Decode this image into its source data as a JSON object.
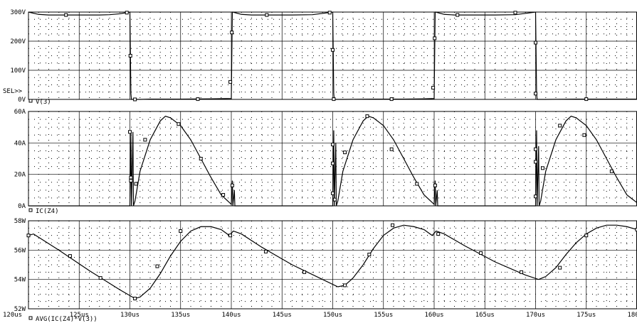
{
  "sel_label": "SEL>>",
  "chart_data": [
    {
      "type": "line",
      "title": "",
      "legend": "V(3)",
      "xlim": [
        120,
        180
      ],
      "ylim": [
        0,
        300
      ],
      "y_ticks": [
        {
          "value": 300,
          "label": "300V"
        },
        {
          "value": 200,
          "label": "200V"
        },
        {
          "value": 100,
          "label": "100V"
        },
        {
          "value": 0,
          "label": "0V"
        }
      ],
      "series": [
        {
          "x": [
            120,
            121,
            122,
            123,
            124,
            125,
            126,
            127,
            128,
            129,
            130,
            130.1,
            130.15,
            131,
            132,
            133,
            135,
            138,
            140,
            140.1,
            140.15,
            141,
            142,
            143,
            144,
            146,
            148,
            150,
            150.1,
            150.15,
            151,
            154,
            157,
            159,
            160,
            160.1,
            160.15,
            161,
            162,
            163,
            164,
            166,
            168,
            170,
            170.1,
            170.15,
            171,
            174,
            177,
            180
          ],
          "y": [
            300,
            292,
            290,
            290,
            290,
            290,
            290,
            290,
            291,
            294,
            300,
            20,
            0,
            0,
            1,
            1,
            1,
            2,
            3,
            300,
            300,
            292,
            290,
            290,
            290,
            290,
            291,
            300,
            20,
            0,
            0,
            1,
            1,
            2,
            3,
            300,
            300,
            292,
            290,
            290,
            290,
            290,
            291,
            300,
            20,
            0,
            0,
            1,
            1,
            1
          ],
          "markers": [
            [
              123.7,
              290
            ],
            [
              129.7,
              298
            ],
            [
              130.05,
              150
            ],
            [
              130.5,
              0
            ],
            [
              136.7,
              1
            ],
            [
              139.9,
              60
            ],
            [
              140.05,
              230
            ],
            [
              143.5,
              290
            ],
            [
              149.7,
              298
            ],
            [
              150.0,
              170
            ],
            [
              150.1,
              1
            ],
            [
              155.8,
              1
            ],
            [
              159.9,
              40
            ],
            [
              160.05,
              210
            ],
            [
              162.3,
              290
            ],
            [
              168.0,
              298
            ],
            [
              170.0,
              195
            ],
            [
              170.0,
              20
            ],
            [
              175.0,
              1
            ]
          ]
        }
      ]
    },
    {
      "type": "line",
      "title": "",
      "legend": "IC(Z4)",
      "xlim": [
        120,
        180
      ],
      "ylim": [
        0,
        60
      ],
      "y_ticks": [
        {
          "value": 60,
          "label": "60A"
        },
        {
          "value": 40,
          "label": "40A"
        },
        {
          "value": 20,
          "label": "20A"
        },
        {
          "value": 0,
          "label": "0A"
        }
      ],
      "series": [
        {
          "x": [
            120,
            130,
            130.1,
            130.15,
            130.3,
            130.35,
            130.5,
            131,
            132,
            133,
            133.5,
            134,
            135,
            136,
            137,
            138,
            139,
            140,
            140.1,
            140.15,
            140.3,
            140.35,
            141,
            150,
            150.1,
            150.15,
            150.3,
            150.35,
            150.5,
            151,
            152,
            153,
            153.5,
            154,
            155,
            156,
            157,
            158,
            159,
            160,
            160.1,
            160.15,
            160.3,
            160.35,
            161,
            170,
            170.1,
            170.15,
            170.3,
            170.35,
            170.5,
            171,
            172,
            173,
            173.5,
            174,
            175,
            176,
            177,
            178,
            179,
            180
          ],
          "y": [
            0,
            0,
            47,
            0,
            47,
            0,
            3,
            22,
            42,
            54,
            57,
            56,
            51,
            42,
            30,
            18,
            7,
            1,
            16,
            0,
            10,
            0,
            0,
            0,
            48,
            0,
            40,
            0,
            3,
            22,
            42,
            54,
            57,
            56,
            51,
            42,
            30,
            18,
            7,
            1,
            16,
            0,
            10,
            0,
            0,
            0,
            48,
            0,
            38,
            0,
            3,
            22,
            42,
            54,
            57,
            56,
            51,
            42,
            30,
            18,
            7,
            2
          ],
          "markers": [
            [
              130.0,
              47
            ],
            [
              130.1,
              18
            ],
            [
              130.1,
              16
            ],
            [
              130.6,
              14
            ],
            [
              131.5,
              42
            ],
            [
              134.8,
              52
            ],
            [
              137.0,
              30
            ],
            [
              139.2,
              7
            ],
            [
              140.1,
              13
            ],
            [
              150.0,
              39
            ],
            [
              150.0,
              27
            ],
            [
              150.0,
              8
            ],
            [
              150.2,
              4
            ],
            [
              151.2,
              34
            ],
            [
              153.4,
              57
            ],
            [
              155.8,
              36
            ],
            [
              158.3,
              14
            ],
            [
              160.1,
              13
            ],
            [
              170.0,
              36
            ],
            [
              170.0,
              28
            ],
            [
              170.0,
              6
            ],
            [
              170.7,
              24
            ],
            [
              172.4,
              51
            ],
            [
              174.8,
              45
            ],
            [
              177.5,
              22
            ]
          ]
        }
      ]
    },
    {
      "type": "line",
      "title": "",
      "legend": "AVG(IC(Z4)*V(3))",
      "xlim": [
        120,
        180
      ],
      "ylim": [
        52,
        58
      ],
      "x_ticks": [
        {
          "value": 120,
          "label": "120us"
        },
        {
          "value": 125,
          "label": "125us"
        },
        {
          "value": 130,
          "label": "130us"
        },
        {
          "value": 135,
          "label": "135us"
        },
        {
          "value": 140,
          "label": "140us"
        },
        {
          "value": 145,
          "label": "145us"
        },
        {
          "value": 150,
          "label": "150us"
        },
        {
          "value": 155,
          "label": "155us"
        },
        {
          "value": 160,
          "label": "160us"
        },
        {
          "value": 165,
          "label": "165us"
        },
        {
          "value": 170,
          "label": "170us"
        },
        {
          "value": 175,
          "label": "175us"
        },
        {
          "value": 180,
          "label": "180us"
        }
      ],
      "y_ticks": [
        {
          "value": 58,
          "label": "58W"
        },
        {
          "value": 56,
          "label": "56W"
        },
        {
          "value": 54,
          "label": "54W"
        },
        {
          "value": 52,
          "label": "52W"
        }
      ],
      "series": [
        {
          "x": [
            120,
            120.5,
            123,
            126,
            129,
            130.5,
            131,
            132,
            133,
            134,
            135,
            136,
            137,
            138,
            139,
            139.8,
            140.2,
            141,
            143,
            146,
            149,
            150.5,
            151.2,
            152,
            153,
            154,
            155,
            156,
            157,
            158,
            159,
            159.8,
            160.2,
            161,
            163,
            166,
            169,
            170.3,
            171,
            172,
            173,
            174,
            175,
            176,
            177,
            178,
            179,
            180
          ],
          "y": [
            57.0,
            57.1,
            56.0,
            54.6,
            53.3,
            52.7,
            52.8,
            53.4,
            54.4,
            55.6,
            56.6,
            57.3,
            57.6,
            57.6,
            57.4,
            57.0,
            57.3,
            57.1,
            56.2,
            55.0,
            54.0,
            53.5,
            53.6,
            54.1,
            55.0,
            56.1,
            57.0,
            57.5,
            57.7,
            57.6,
            57.4,
            57.0,
            57.3,
            57.1,
            56.3,
            55.2,
            54.3,
            54.0,
            54.2,
            54.8,
            55.7,
            56.5,
            57.1,
            57.5,
            57.7,
            57.7,
            57.6,
            57.4
          ],
          "markers": [
            [
              120.0,
              57.0
            ],
            [
              124.1,
              55.6
            ],
            [
              127.1,
              54.1
            ],
            [
              130.5,
              52.7
            ],
            [
              132.7,
              54.9
            ],
            [
              135.0,
              57.3
            ],
            [
              139.9,
              57.0
            ],
            [
              143.4,
              55.9
            ],
            [
              147.2,
              54.5
            ],
            [
              151.2,
              53.6
            ],
            [
              153.6,
              55.7
            ],
            [
              155.9,
              57.7
            ],
            [
              160.4,
              57.1
            ],
            [
              164.6,
              55.8
            ],
            [
              168.6,
              54.5
            ],
            [
              172.4,
              54.8
            ],
            [
              175.0,
              57.0
            ],
            [
              180.0,
              57.4
            ]
          ]
        }
      ]
    }
  ]
}
